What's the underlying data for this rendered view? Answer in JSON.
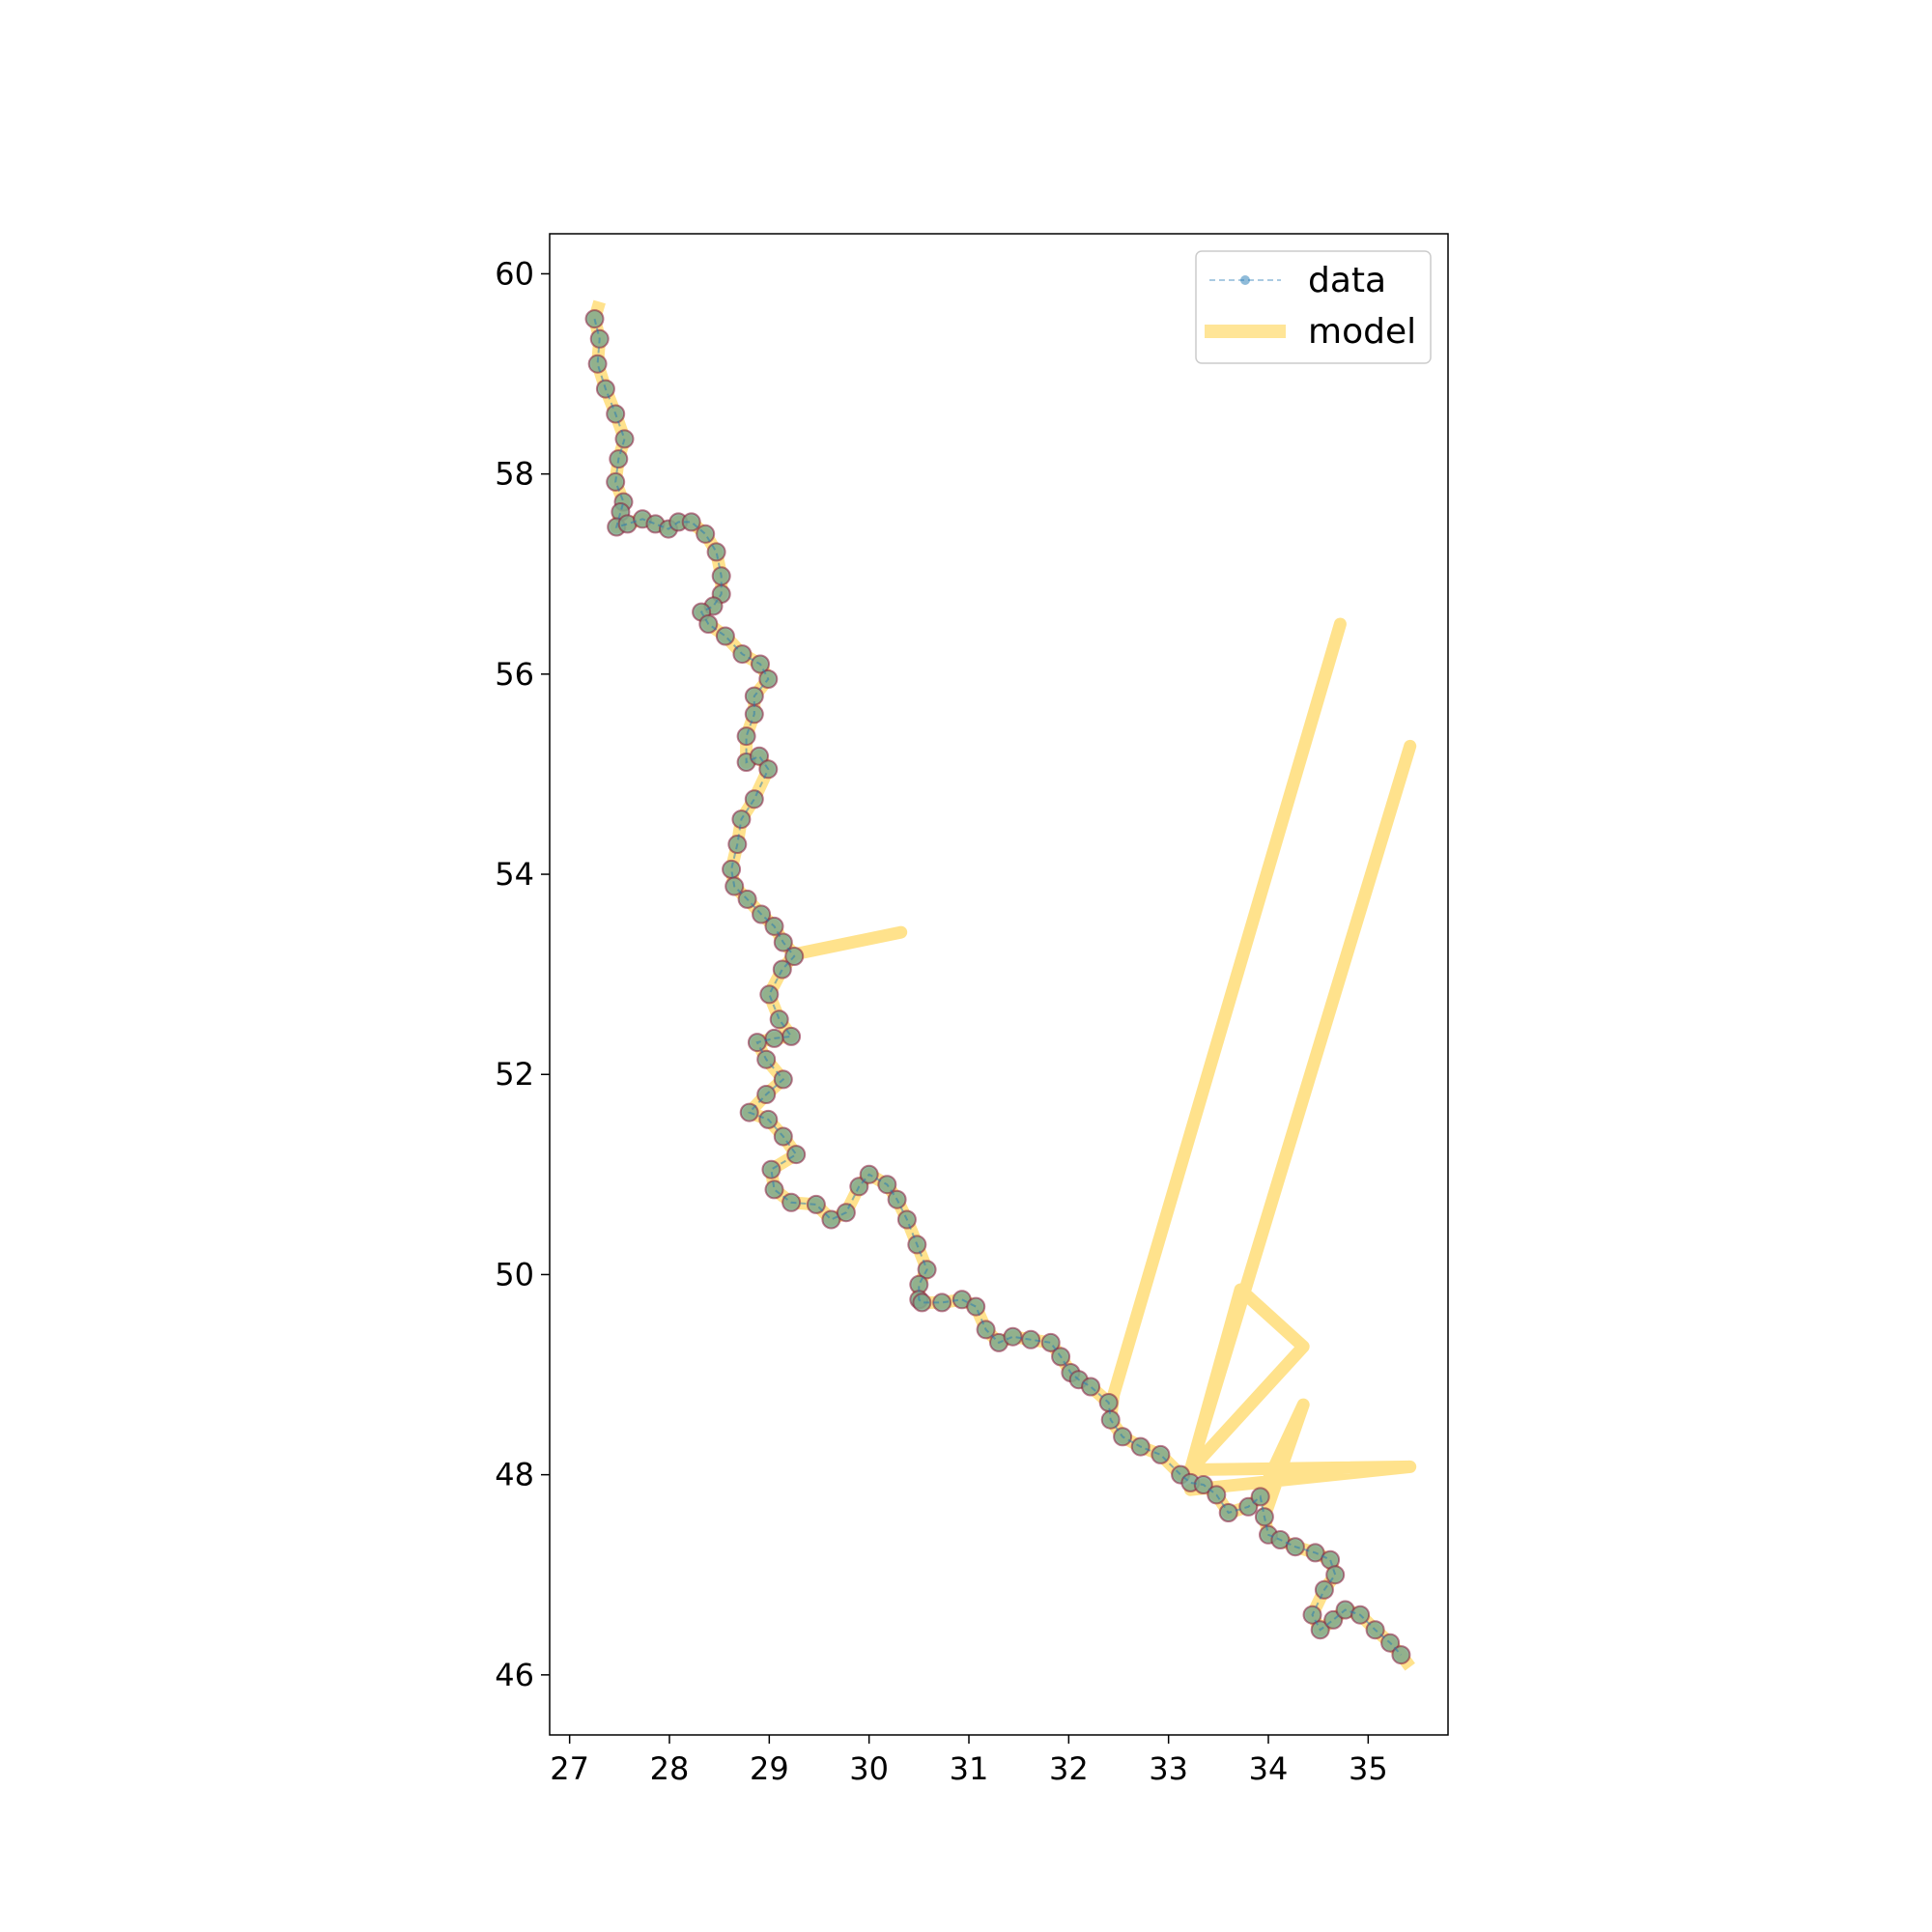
{
  "chart_data": {
    "type": "line",
    "title": "",
    "xlabel": "",
    "ylabel": "",
    "xlim": [
      26.8,
      35.8
    ],
    "ylim": [
      45.4,
      60.4
    ],
    "xticks": [
      27,
      28,
      29,
      30,
      31,
      32,
      33,
      34,
      35
    ],
    "yticks": [
      46,
      48,
      50,
      52,
      54,
      56,
      58,
      60
    ],
    "grid": false,
    "legend": {
      "position": "upper right",
      "entries": [
        "data",
        "model"
      ]
    },
    "colors": {
      "data_line": "#1f77b4",
      "data_marker_fill": "#7fa88c",
      "data_marker_edge": "#8b1a3a",
      "model": "#ffc61a"
    },
    "series": [
      {
        "name": "data",
        "style": "dashed line with circle markers",
        "x": [
          27.25,
          27.3,
          27.28,
          27.36,
          27.46,
          27.55,
          27.49,
          27.46,
          27.54,
          27.51,
          27.47,
          27.58,
          27.73,
          27.86,
          27.99,
          28.09,
          28.22,
          28.36,
          28.47,
          28.52,
          28.52,
          28.44,
          28.32,
          28.39,
          28.56,
          28.73,
          28.91,
          28.99,
          28.85,
          28.85,
          28.77,
          28.77,
          28.9,
          28.99,
          28.85,
          28.72,
          28.68,
          28.62,
          28.65,
          28.78,
          28.92,
          29.05,
          29.14,
          29.25,
          29.13,
          29.0,
          29.1,
          29.22,
          29.05,
          28.88,
          28.97,
          29.14,
          28.97,
          28.8,
          28.99,
          29.14,
          29.27,
          29.02,
          29.05,
          29.22,
          29.47,
          29.62,
          29.77,
          29.9,
          30.0,
          30.18,
          30.28,
          30.38,
          30.48,
          30.58,
          30.5,
          30.5,
          30.53,
          30.73,
          30.93,
          31.07,
          31.17,
          31.3,
          31.44,
          31.62,
          31.82,
          31.92,
          32.02,
          32.1,
          32.22,
          32.4,
          32.42,
          32.54,
          32.72,
          32.92,
          33.12,
          33.22,
          33.35,
          33.48,
          33.6,
          33.8,
          33.92,
          33.96,
          34.0,
          34.12,
          34.27,
          34.47,
          34.62,
          34.67,
          34.56,
          34.44,
          34.52,
          34.65,
          34.77,
          34.92,
          35.07,
          35.22,
          35.33
        ],
        "y": [
          59.55,
          59.35,
          59.1,
          58.85,
          58.6,
          58.35,
          58.15,
          57.92,
          57.72,
          57.62,
          57.47,
          57.5,
          57.55,
          57.5,
          57.45,
          57.52,
          57.52,
          57.4,
          57.22,
          56.98,
          56.8,
          56.68,
          56.62,
          56.5,
          56.38,
          56.2,
          56.1,
          55.95,
          55.78,
          55.6,
          55.38,
          55.12,
          55.18,
          55.05,
          54.75,
          54.55,
          54.3,
          54.05,
          53.88,
          53.75,
          53.6,
          53.48,
          53.32,
          53.18,
          53.05,
          52.8,
          52.55,
          52.38,
          52.36,
          52.32,
          52.15,
          51.95,
          51.8,
          51.62,
          51.55,
          51.38,
          51.2,
          51.05,
          50.85,
          50.72,
          50.7,
          50.55,
          50.62,
          50.88,
          51.0,
          50.9,
          50.75,
          50.55,
          50.3,
          50.05,
          49.9,
          49.75,
          49.72,
          49.72,
          49.75,
          49.68,
          49.45,
          49.32,
          49.38,
          49.35,
          49.32,
          49.18,
          49.02,
          48.95,
          48.88,
          48.72,
          48.55,
          48.38,
          48.28,
          48.2,
          48.0,
          47.92,
          47.9,
          47.8,
          47.62,
          47.68,
          47.78,
          47.58,
          47.4,
          47.35,
          47.28,
          47.22,
          47.15,
          47.0,
          46.85,
          46.6,
          46.45,
          46.55,
          46.65,
          46.6,
          46.45,
          46.32,
          46.2
        ]
      },
      {
        "name": "model",
        "style": "thick translucent line",
        "x": [
          27.3,
          27.25,
          27.3,
          27.28,
          27.36,
          27.46,
          27.55,
          27.49,
          27.46,
          27.54,
          27.51,
          27.47,
          27.58,
          27.73,
          27.86,
          27.99,
          28.09,
          28.22,
          28.36,
          28.47,
          28.52,
          28.52,
          28.44,
          28.32,
          28.39,
          28.56,
          28.73,
          28.91,
          28.99,
          28.85,
          28.85,
          28.77,
          28.77,
          28.9,
          28.99,
          28.85,
          28.72,
          28.68,
          28.62,
          28.65,
          28.78,
          28.92,
          29.05,
          29.14,
          29.25,
          30.32,
          29.25,
          29.13,
          29.0,
          29.1,
          29.22,
          29.05,
          28.88,
          28.97,
          29.14,
          28.97,
          28.8,
          28.99,
          29.14,
          29.27,
          29.02,
          29.05,
          29.22,
          29.47,
          29.62,
          29.77,
          29.9,
          30.0,
          30.18,
          30.28,
          30.38,
          30.48,
          30.58,
          30.5,
          30.5,
          30.53,
          30.73,
          30.93,
          31.07,
          31.17,
          31.3,
          31.44,
          31.62,
          31.82,
          31.92,
          32.02,
          32.1,
          32.22,
          32.4,
          32.45,
          34.72,
          32.45,
          32.42,
          32.54,
          32.72,
          32.92,
          33.12,
          33.22,
          35.42,
          33.22,
          33.72,
          34.35,
          33.22,
          33.72,
          33.22,
          35.42,
          33.22,
          33.35,
          33.48,
          33.6,
          33.8,
          33.92,
          34.35,
          33.96,
          34.0,
          34.12,
          34.27,
          34.47,
          34.62,
          34.67,
          34.56,
          34.44,
          34.52,
          34.65,
          34.77,
          34.92,
          35.07,
          35.22,
          35.33,
          35.42
        ],
        "y": [
          59.72,
          59.55,
          59.35,
          59.1,
          58.85,
          58.6,
          58.35,
          58.15,
          57.92,
          57.72,
          57.62,
          57.47,
          57.5,
          57.55,
          57.5,
          57.45,
          57.52,
          57.52,
          57.4,
          57.22,
          56.98,
          56.8,
          56.68,
          56.62,
          56.5,
          56.38,
          56.2,
          56.1,
          55.95,
          55.78,
          55.6,
          55.38,
          55.12,
          55.18,
          55.05,
          54.75,
          54.55,
          54.3,
          54.05,
          53.88,
          53.75,
          53.6,
          53.48,
          53.32,
          53.2,
          53.42,
          53.2,
          53.05,
          52.8,
          52.55,
          52.38,
          52.36,
          52.32,
          52.15,
          51.95,
          51.8,
          51.62,
          51.55,
          51.38,
          51.2,
          51.05,
          50.85,
          50.72,
          50.7,
          50.55,
          50.62,
          50.88,
          51.0,
          50.9,
          50.75,
          50.55,
          50.3,
          50.05,
          49.9,
          49.75,
          49.72,
          49.72,
          49.75,
          49.68,
          49.45,
          49.32,
          49.38,
          49.35,
          49.32,
          49.18,
          49.02,
          48.95,
          48.88,
          48.72,
          48.8,
          56.5,
          48.8,
          48.55,
          48.38,
          48.28,
          48.2,
          48.0,
          48.05,
          55.28,
          48.05,
          49.85,
          49.28,
          48.05,
          49.85,
          48.05,
          48.08,
          47.85,
          47.9,
          47.8,
          47.62,
          47.68,
          47.78,
          48.7,
          47.58,
          47.4,
          47.35,
          47.28,
          47.22,
          47.15,
          47.0,
          46.85,
          46.6,
          46.45,
          46.55,
          46.65,
          46.6,
          46.45,
          46.32,
          46.2,
          46.08
        ]
      }
    ]
  }
}
